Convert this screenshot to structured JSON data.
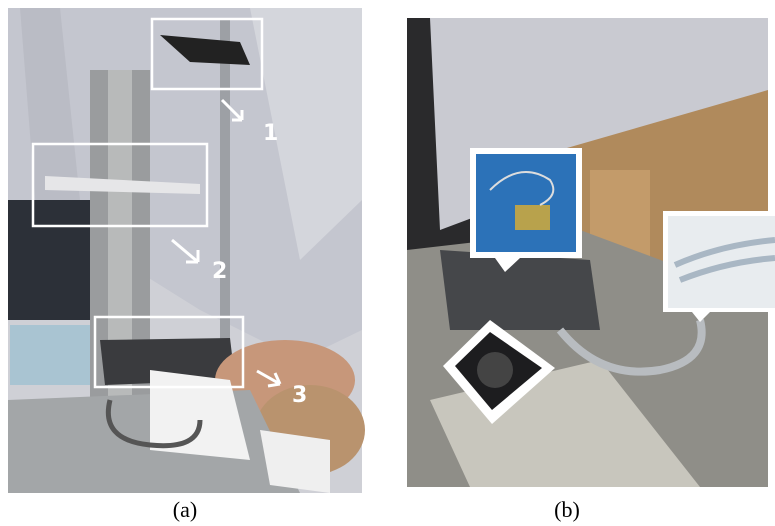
{
  "panels": [
    {
      "caption": "(a)",
      "callouts": [
        "1",
        "2",
        "3"
      ]
    },
    {
      "caption": "(b)"
    }
  ]
}
